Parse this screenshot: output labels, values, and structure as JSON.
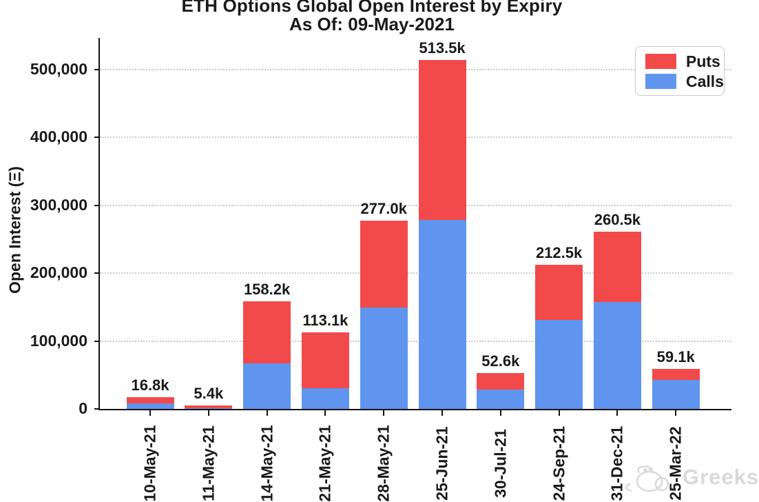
{
  "header": {
    "title": "ETH Options Global Open Interest by Expiry",
    "subtitle": "As Of: 09-May-2021"
  },
  "chart_data": {
    "type": "bar",
    "stacked": true,
    "title": "ETH Options Global Open Interest by Expiry",
    "subtitle": "As Of: 09-May-2021",
    "xlabel": "",
    "ylabel": "Open Interest (Ξ)",
    "grid": "horizontal-dotted",
    "legend_position": "upper-right",
    "categories": [
      "10-May-21",
      "11-May-21",
      "14-May-21",
      "21-May-21",
      "28-May-21",
      "25-Jun-21",
      "30-Jul-21",
      "24-Sep-21",
      "31-Dec-21",
      "25-Mar-22"
    ],
    "series": [
      {
        "name": "Calls",
        "color": "#6095ef",
        "values": [
          8500,
          600,
          67500,
          30400,
          149500,
          278000,
          28200,
          130500,
          157000,
          42300
        ]
      },
      {
        "name": "Puts",
        "color": "#f24a4a",
        "values": [
          8300,
          4800,
          90700,
          82700,
          127500,
          235500,
          24400,
          82000,
          103500,
          16800
        ]
      }
    ],
    "totals": [
      16800,
      5400,
      158200,
      113100,
      277000,
      513500,
      52600,
      212500,
      260500,
      59100
    ],
    "total_labels": [
      "16.8k",
      "5.4k",
      "158.2k",
      "113.1k",
      "277.0k",
      "513.5k",
      "52.6k",
      "212.5k",
      "260.5k",
      "59.1k"
    ],
    "y_ticks": [
      0,
      100000,
      200000,
      300000,
      400000,
      500000
    ],
    "y_tick_labels": [
      "0",
      "100,000",
      "200,000",
      "300,000",
      "400,000",
      "500,000"
    ],
    "ylim": [
      0,
      545000
    ]
  },
  "legend": {
    "entries": [
      {
        "label": "Puts",
        "color": "#f24a4a"
      },
      {
        "label": "Calls",
        "color": "#6095ef"
      }
    ]
  },
  "watermark": {
    "text": "Greeks"
  },
  "colors": {
    "puts": "#f24a4a",
    "calls": "#6095ef",
    "grid": "#c9c9c9",
    "axis": "#111111",
    "watermark": "#d9d9d9"
  }
}
